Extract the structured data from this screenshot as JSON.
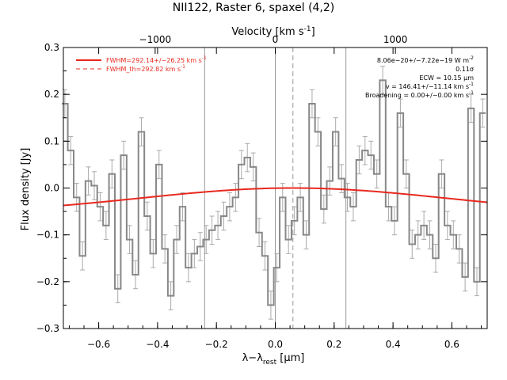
{
  "chart_data": {
    "type": "line",
    "title": "NII122, Raster 6, spaxel (4,2)",
    "xlabel": "λ−λrest [μm]",
    "xlabel_main": "λ−λ",
    "xlabel_sub": "rest",
    "xlabel_unit": " [μm]",
    "ylabel": "Flux density [Jy]",
    "top_xlabel": "Velocity [km s⁻¹]",
    "top_xlabel_main": "Velocity [km s",
    "top_xlabel_sup": "-1",
    "top_xlabel_end": "]",
    "xlim": [
      -0.72,
      0.72
    ],
    "ylim": [
      -0.3,
      0.3
    ],
    "x_ticks": [
      -0.6,
      -0.4,
      -0.2,
      0.0,
      0.2,
      0.4,
      0.6
    ],
    "x_tick_labels": [
      "−0.6",
      "−0.4",
      "−0.2",
      "0.0",
      "0.2",
      "0.4",
      "0.6"
    ],
    "y_ticks": [
      -0.3,
      -0.2,
      -0.1,
      0.0,
      0.1,
      0.2,
      0.3
    ],
    "y_tick_labels": [
      "−0.3",
      "−0.2",
      "−0.1",
      "0.0",
      "0.1",
      "0.2",
      "0.3"
    ],
    "top_ticks_velocity": [
      -1000,
      0,
      1000
    ],
    "top_tick_labels": [
      "−1000",
      "0",
      "1000"
    ],
    "velocity_per_micron": 2450,
    "legend": [
      {
        "label": "FWHM=292.14+/−26.25 km s⁻¹",
        "label_main": "FWHM=292.14+/−26.25 km s",
        "label_sup": "-1",
        "style": "solid",
        "color": "#e8281e"
      },
      {
        "label": "FWHM_th=292.82 km s⁻¹",
        "label_main": "FWHM_th=292.82 km s",
        "label_sup": "-1",
        "style": "dashed",
        "color": "#e8281e"
      }
    ],
    "annotations": [
      {
        "main": "8.06e−20+/−7.22e−19 W m",
        "sup": "-2"
      },
      {
        "main": "0.11σ",
        "sup": ""
      },
      {
        "main": "ECW = 10.15 μm",
        "sup": ""
      },
      {
        "main": "v = 146.41+/−11.14 km s",
        "sup": "-1"
      },
      {
        "main": "Broadening = 0.00+/−0.00 km s",
        "sup": "-1"
      }
    ],
    "vertical_lines": [
      {
        "x": -0.24,
        "style": "solid"
      },
      {
        "x": 0.0,
        "style": "solid"
      },
      {
        "x": 0.24,
        "style": "solid"
      },
      {
        "x": 0.06,
        "style": "dashed"
      }
    ],
    "series": [
      {
        "kind": "step",
        "color": "#888888",
        "x": [
          -0.715,
          -0.695,
          -0.675,
          -0.655,
          -0.635,
          -0.615,
          -0.595,
          -0.575,
          -0.555,
          -0.535,
          -0.515,
          -0.495,
          -0.475,
          -0.455,
          -0.435,
          -0.415,
          -0.395,
          -0.375,
          -0.355,
          -0.335,
          -0.315,
          -0.295,
          -0.275,
          -0.255,
          -0.235,
          -0.215,
          -0.195,
          -0.175,
          -0.155,
          -0.135,
          -0.115,
          -0.095,
          -0.075,
          -0.055,
          -0.035,
          -0.015,
          0.005,
          0.025,
          0.045,
          0.065,
          0.085,
          0.105,
          0.125,
          0.145,
          0.165,
          0.185,
          0.205,
          0.225,
          0.245,
          0.265,
          0.285,
          0.305,
          0.325,
          0.345,
          0.365,
          0.385,
          0.405,
          0.425,
          0.445,
          0.465,
          0.485,
          0.505,
          0.525,
          0.545,
          0.565,
          0.585,
          0.605,
          0.625,
          0.645,
          0.665,
          0.685,
          0.705
        ],
        "values": [
          0.18,
          0.08,
          -0.02,
          -0.145,
          0.015,
          0.005,
          -0.04,
          -0.08,
          0.03,
          -0.215,
          0.07,
          -0.11,
          -0.185,
          0.12,
          -0.06,
          -0.14,
          0.05,
          -0.13,
          -0.23,
          -0.11,
          -0.04,
          -0.17,
          -0.14,
          -0.125,
          -0.11,
          -0.09,
          -0.08,
          -0.06,
          -0.04,
          -0.02,
          0.05,
          0.065,
          0.045,
          -0.095,
          -0.145,
          -0.25,
          -0.17,
          -0.02,
          -0.11,
          -0.07,
          -0.02,
          -0.1,
          0.18,
          0.12,
          -0.045,
          0.015,
          0.12,
          0.02,
          -0.02,
          -0.04,
          0.06,
          0.08,
          0.07,
          0.03,
          0.23,
          -0.04,
          -0.07,
          0.16,
          0.03,
          -0.12,
          -0.1,
          -0.08,
          -0.1,
          -0.15,
          0.03,
          -0.08,
          -0.1,
          -0.13,
          -0.19,
          0.17,
          -0.2,
          0.16
        ],
        "errors": 0.03
      },
      {
        "kind": "gaussian",
        "color": "#e8281e",
        "center": 0.06,
        "amplitude": 0.055,
        "sigma": 0.52,
        "offset": -0.055
      }
    ]
  }
}
